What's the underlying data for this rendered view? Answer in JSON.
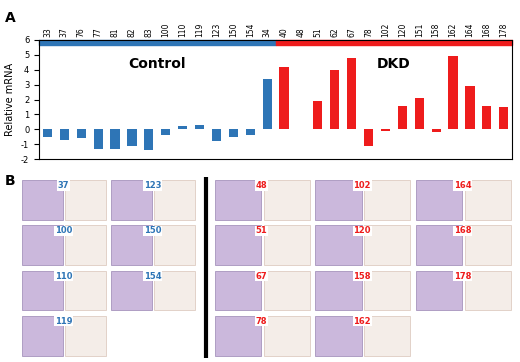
{
  "chart_data": {
    "type": "bar",
    "panel_label": "A",
    "y_label": "Relative mRNA",
    "categories": [
      "33",
      "37",
      "76",
      "77",
      "81",
      "82",
      "83",
      "100",
      "110",
      "119",
      "123",
      "150",
      "154",
      "34",
      "40",
      "48",
      "51",
      "62",
      "67",
      "78",
      "102",
      "120",
      "151",
      "158",
      "162",
      "164",
      "168",
      "178"
    ],
    "series": [
      {
        "name": "Control",
        "color": "#2e75b6",
        "values": [
          -0.5,
          -0.7,
          -0.6,
          -1.3,
          -1.3,
          -1.1,
          -1.4,
          -0.4,
          0.2,
          0.3,
          -0.8,
          -0.5,
          -0.4,
          3.4,
          null,
          null,
          null,
          null,
          null,
          null,
          null,
          null,
          null,
          null,
          null,
          null,
          null,
          null
        ]
      },
      {
        "name": "DKD",
        "color": "#ee1c1c",
        "values": [
          null,
          null,
          null,
          null,
          null,
          null,
          null,
          null,
          null,
          null,
          null,
          null,
          null,
          null,
          4.2,
          0.05,
          1.9,
          4.0,
          4.8,
          -1.1,
          -0.1,
          1.6,
          2.1,
          -0.2,
          4.9,
          2.9,
          1.6,
          1.5
        ]
      }
    ],
    "ylim": [
      -2,
      6
    ],
    "yticks": [
      -2,
      -1,
      0,
      1,
      2,
      3,
      4,
      5,
      6
    ],
    "grid": false
  },
  "panel_b": {
    "panel_label": "B",
    "groups": [
      {
        "name": "Control",
        "color": "#2e75b6",
        "columns": 2,
        "samples": [
          "37",
          "123",
          "100",
          "150",
          "110",
          "154",
          "119"
        ]
      },
      {
        "name": "DKD",
        "color": "#ee1c1c",
        "columns": 3,
        "samples": [
          "48",
          "102",
          "164",
          "51",
          "120",
          "168",
          "67",
          "158",
          "178",
          "78",
          "162"
        ]
      }
    ]
  }
}
